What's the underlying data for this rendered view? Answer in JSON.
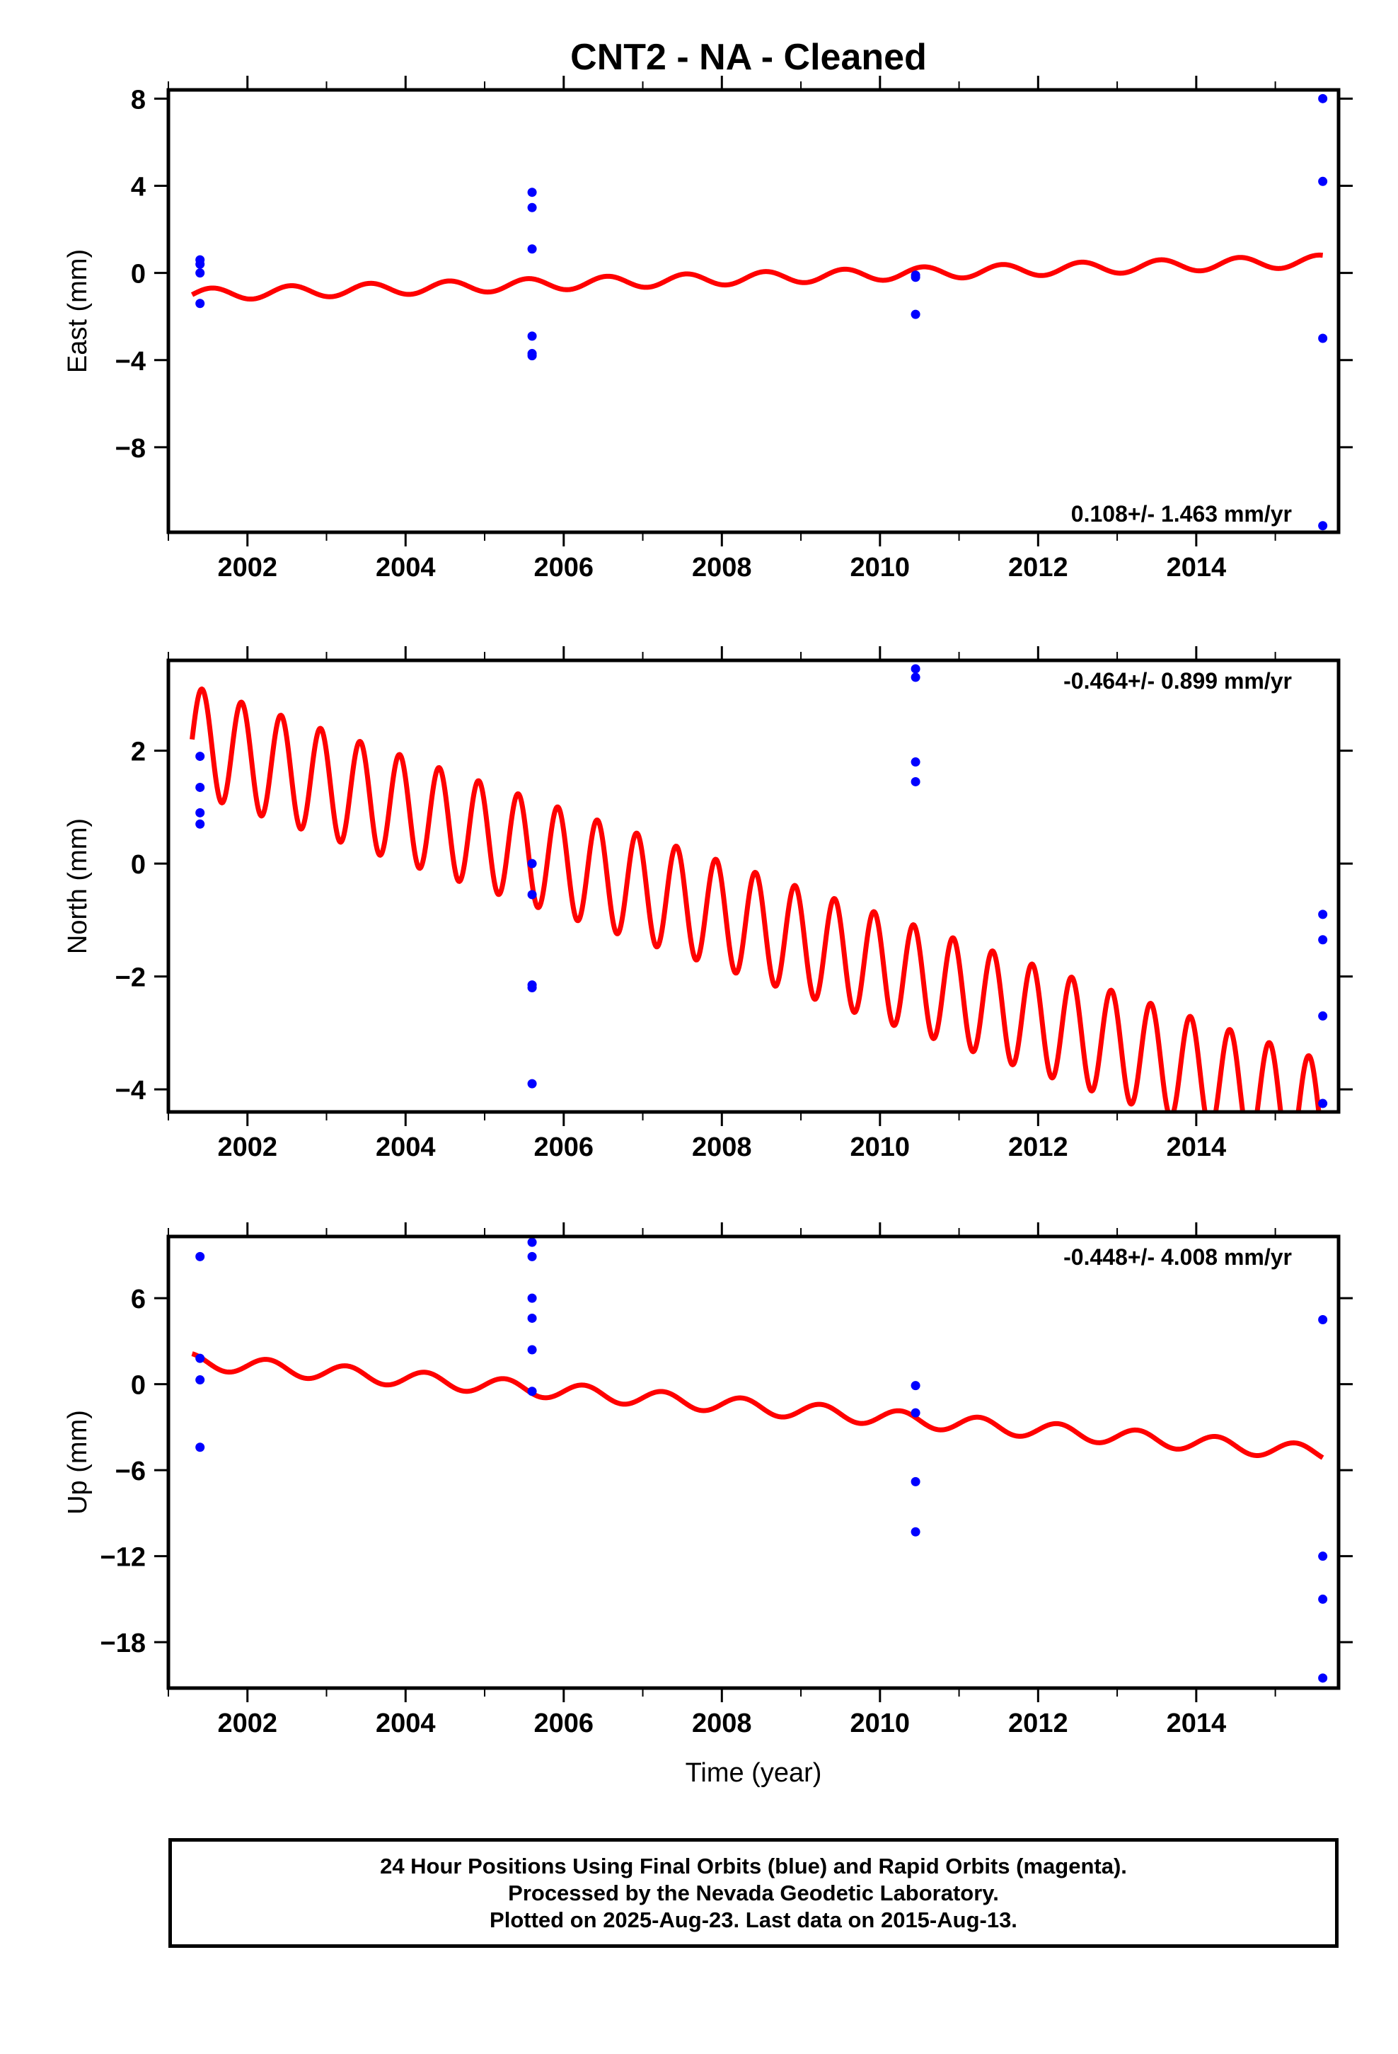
{
  "title": "CNT2  - NA - Cleaned",
  "footer": {
    "line1": "24 Hour Positions Using Final Orbits (blue) and Rapid Orbits (magenta).",
    "line2": "Processed by the Nevada Geodetic Laboratory.",
    "line3": "Plotted on 2025-Aug-23. Last data on 2015-Aug-13."
  },
  "colors": {
    "points": "#0000ff",
    "model": "#ff0000",
    "frame": "#000000"
  },
  "chart_data": [
    {
      "type": "scatter",
      "ylabel": "East (mm)",
      "xlabel": "",
      "rate_label": "0.108+/- 1.463 mm/yr",
      "xlim": [
        2001.0,
        2015.8
      ],
      "ylim": [
        -11.9,
        8.4
      ],
      "xticks": [
        2002,
        2004,
        2006,
        2008,
        2010,
        2012,
        2014
      ],
      "yticks": [
        8,
        4,
        0,
        -4,
        -8
      ],
      "ytick_labels": [
        "8",
        "4",
        "0",
        "−4",
        "−8"
      ],
      "points": [
        [
          2001.4,
          0.6
        ],
        [
          2001.4,
          0.4
        ],
        [
          2001.4,
          0.0
        ],
        [
          2001.4,
          -1.4
        ],
        [
          2005.6,
          3.7
        ],
        [
          2005.6,
          3.0
        ],
        [
          2005.6,
          1.1
        ],
        [
          2005.6,
          -2.9
        ],
        [
          2005.6,
          -3.7
        ],
        [
          2005.6,
          -3.8
        ],
        [
          2010.45,
          -0.1
        ],
        [
          2010.45,
          -0.2
        ],
        [
          2010.45,
          -1.9
        ],
        [
          2015.6,
          8.0
        ],
        [
          2015.6,
          4.2
        ],
        [
          2015.6,
          -3.0
        ],
        [
          2015.6,
          -11.6
        ]
      ],
      "model": {
        "start": 2001.3,
        "end": 2015.6,
        "y0": -1.0,
        "slope": 0.108,
        "amplitude": 0.28,
        "period": 1.0,
        "phase": 0.0
      }
    },
    {
      "type": "scatter",
      "ylabel": "North (mm)",
      "xlabel": "",
      "rate_label": "-0.464+/- 0.899 mm/yr",
      "xlim": [
        2001.0,
        2015.8
      ],
      "ylim": [
        -4.4,
        3.6
      ],
      "xticks": [
        2002,
        2004,
        2006,
        2008,
        2010,
        2012,
        2014
      ],
      "yticks": [
        2,
        0,
        -2,
        -4
      ],
      "ytick_labels": [
        "2",
        "0",
        "−2",
        "−4"
      ],
      "points": [
        [
          2001.4,
          1.9
        ],
        [
          2001.4,
          1.35
        ],
        [
          2001.4,
          0.9
        ],
        [
          2001.4,
          0.7
        ],
        [
          2005.6,
          0.0
        ],
        [
          2005.6,
          -0.55
        ],
        [
          2005.6,
          -2.15
        ],
        [
          2005.6,
          -2.2
        ],
        [
          2005.6,
          -3.9
        ],
        [
          2010.45,
          3.45
        ],
        [
          2010.45,
          3.3
        ],
        [
          2010.45,
          1.8
        ],
        [
          2010.45,
          1.45
        ],
        [
          2015.6,
          -0.9
        ],
        [
          2015.6,
          -1.35
        ],
        [
          2015.6,
          -2.7
        ],
        [
          2015.6,
          -4.25
        ]
      ],
      "model": {
        "start": 2001.3,
        "end": 2015.6,
        "y0": 2.2,
        "slope": -0.464,
        "amplitude": 0.95,
        "period": 0.5,
        "phase": 0.0
      }
    },
    {
      "type": "scatter",
      "ylabel": "Up (mm)",
      "xlabel": "Time (year)",
      "rate_label": "-0.448+/- 4.008 mm/yr",
      "xlim": [
        2001.0,
        2015.8
      ],
      "ylim": [
        -21.2,
        10.3
      ],
      "xticks": [
        2002,
        2004,
        2006,
        2008,
        2010,
        2012,
        2014
      ],
      "yticks": [
        6,
        0,
        -6,
        -12,
        -18
      ],
      "ytick_labels": [
        "6",
        "0",
        "−6",
        "−12",
        "−18"
      ],
      "points": [
        [
          2001.4,
          8.9
        ],
        [
          2001.4,
          1.8
        ],
        [
          2001.4,
          0.3
        ],
        [
          2001.4,
          -4.4
        ],
        [
          2005.6,
          9.9
        ],
        [
          2005.6,
          8.9
        ],
        [
          2005.6,
          6.0
        ],
        [
          2005.6,
          4.6
        ],
        [
          2005.6,
          2.4
        ],
        [
          2005.6,
          -0.5
        ],
        [
          2010.45,
          -0.1
        ],
        [
          2010.45,
          -2.0
        ],
        [
          2010.45,
          -6.8
        ],
        [
          2010.45,
          -10.3
        ],
        [
          2015.6,
          4.5
        ],
        [
          2015.6,
          -12.0
        ],
        [
          2015.6,
          -15.0
        ],
        [
          2015.6,
          -20.5
        ]
      ],
      "model": {
        "start": 2001.3,
        "end": 2015.6,
        "y0": 1.6,
        "slope": -0.448,
        "amplitude": 0.55,
        "period": 1.0,
        "phase": 0.3
      }
    }
  ]
}
